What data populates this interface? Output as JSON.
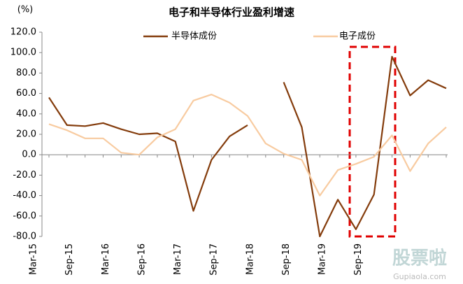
{
  "chart_data": {
    "type": "line",
    "title": "电子和半导体行业盈利增速",
    "y_unit": "(%)",
    "watermark": [
      "股票啦",
      "Gupiaola.com"
    ],
    "categories": [
      "Mar-15",
      null,
      "Sep-15",
      null,
      "Mar-16",
      null,
      "Sep-16",
      null,
      "Mar-17",
      null,
      "Sep-17",
      null,
      "Mar-18",
      null,
      "Sep-18",
      null,
      "Mar-19",
      null,
      "Sep-19",
      null,
      null,
      null,
      null
    ],
    "series": [
      {
        "name": "半导体成份",
        "color": "#843c0c",
        "values": [
          56,
          29,
          28,
          31,
          25,
          20,
          21,
          13,
          -55,
          -5,
          18,
          29,
          null,
          71,
          27,
          -80,
          -44,
          -73,
          -39,
          96,
          58,
          73,
          65
        ]
      },
      {
        "name": "电子成份",
        "color": "#f8cba0",
        "values": [
          30,
          24,
          16,
          16,
          2,
          0,
          17,
          25,
          53,
          59,
          51,
          38,
          11,
          1,
          -5,
          -40,
          -15,
          -9,
          -2,
          19,
          -16,
          11,
          27
        ]
      }
    ],
    "ylim": [
      -80,
      120
    ],
    "yticks": [
      {
        "value": -80,
        "label": "-80.0"
      },
      {
        "value": -60,
        "label": "-60.0"
      },
      {
        "value": -40,
        "label": "-40.0"
      },
      {
        "value": -20,
        "label": "-20.0"
      },
      {
        "value": 0,
        "label": "0.0"
      },
      {
        "value": 20,
        "label": "20.0"
      },
      {
        "value": 40,
        "label": "40.0"
      },
      {
        "value": 60,
        "label": "60.0"
      },
      {
        "value": 80,
        "label": "80.0"
      },
      {
        "value": 100,
        "label": "100.0"
      },
      {
        "value": 120,
        "label": "120.0"
      }
    ],
    "grid": false
  }
}
